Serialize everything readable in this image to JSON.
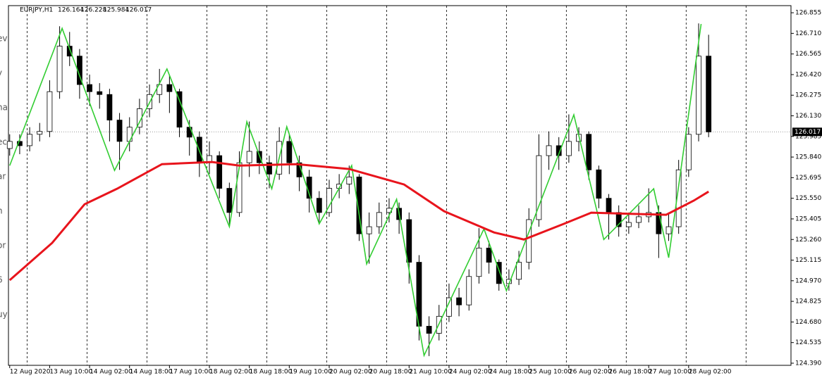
{
  "side_fragments": [
    "ev",
    "y",
    "na",
    "ec",
    "ar",
    "n",
    "or",
    "6",
    "uy"
  ],
  "chart_data": {
    "type": "candlestick",
    "header": {
      "symbol": "EURJPY,H1",
      "open": 126.164,
      "high": 126.228,
      "low": 125.984,
      "close": 126.017
    },
    "last_price": 126.017,
    "xlim": [
      -0.5,
      313
    ],
    "ylim": [
      124.375,
      126.905
    ],
    "yticks": [
      126.855,
      {
        "value": 126.71,
        "label": "126.710"
      },
      126.565,
      {
        "value": 126.42,
        "label": "126.420"
      },
      126.275,
      {
        "value": 126.13,
        "label": "126.130"
      },
      125.985,
      {
        "value": 125.84,
        "label": "125.840"
      },
      125.695,
      {
        "value": 125.55,
        "label": "125.550"
      },
      125.405,
      {
        "value": 125.26,
        "label": "125.260"
      },
      125.115,
      {
        "value": 124.97,
        "label": "124.970"
      },
      124.825,
      {
        "value": 124.68,
        "label": "124.680"
      },
      124.535,
      {
        "value": 124.39,
        "label": "124.390"
      }
    ],
    "xticks": [
      {
        "value": 0,
        "label": "12 Aug 2020"
      },
      {
        "value": 16,
        "label": "13 Aug 10:00"
      },
      {
        "value": 32,
        "label": "14 Aug 02:00"
      },
      {
        "value": 48,
        "label": "14 Aug 18:00"
      },
      {
        "value": 64,
        "label": "17 Aug 10:00"
      },
      {
        "value": 80,
        "label": "18 Aug 02:00"
      },
      {
        "value": 96,
        "label": "18 Aug 18:00"
      },
      {
        "value": 112,
        "label": "19 Aug 10:00"
      },
      {
        "value": 128,
        "label": "20 Aug 02:00"
      },
      {
        "value": 144,
        "label": "20 Aug 18:00"
      },
      {
        "value": 160,
        "label": "21 Aug 10:00"
      },
      {
        "value": 176,
        "label": "24 Aug 02:00"
      },
      {
        "value": 192,
        "label": "24 Aug 18:00"
      },
      {
        "value": 208,
        "label": "25 Aug 10:00"
      },
      {
        "value": 224,
        "label": "26 Aug 02:00"
      },
      {
        "value": 240,
        "label": "26 Aug 18:00"
      },
      {
        "value": 256,
        "label": "27 Aug 10:00"
      },
      {
        "value": 272,
        "label": "28 Aug 02:00"
      }
    ],
    "xgrid": [
      7,
      31,
      55,
      79,
      103,
      127,
      151,
      175,
      199,
      223,
      247,
      271,
      295
    ],
    "candles": {
      "x": [
        0,
        4,
        8,
        12,
        16,
        20,
        24,
        28,
        32,
        36,
        40,
        44,
        48,
        52,
        56,
        60,
        64,
        68,
        72,
        76,
        80,
        84,
        88,
        92,
        96,
        100,
        104,
        108,
        112,
        116,
        120,
        124,
        128,
        132,
        136,
        140,
        144,
        148,
        152,
        156,
        160,
        164,
        168,
        172,
        176,
        180,
        184,
        188,
        192,
        196,
        200,
        204,
        208,
        212,
        216,
        220,
        224,
        228,
        232,
        236,
        240,
        244,
        248,
        252,
        256,
        260,
        264,
        268,
        272,
        276,
        280
      ],
      "open": [
        125.9,
        125.95,
        125.92,
        126.0,
        126.02,
        126.3,
        126.62,
        126.55,
        126.35,
        126.3,
        126.28,
        126.1,
        125.95,
        126.05,
        126.18,
        126.28,
        126.35,
        126.3,
        126.05,
        125.98,
        125.8,
        125.85,
        125.62,
        125.45,
        125.8,
        125.88,
        125.8,
        125.72,
        125.95,
        125.8,
        125.7,
        125.55,
        125.45,
        125.62,
        125.65,
        125.7,
        125.3,
        125.35,
        125.45,
        125.48,
        125.4,
        125.1,
        124.65,
        124.6,
        124.72,
        124.85,
        124.8,
        125.0,
        125.2,
        125.1,
        124.95,
        124.98,
        125.1,
        125.4,
        125.85,
        125.92,
        125.85,
        125.95,
        126.0,
        125.75,
        125.55,
        125.45,
        125.35,
        125.38,
        125.42,
        125.45,
        125.3,
        125.35,
        125.75,
        126.0,
        126.55
      ],
      "high": [
        126.0,
        126.0,
        126.05,
        126.08,
        126.38,
        126.76,
        126.72,
        126.6,
        126.42,
        126.36,
        126.32,
        126.15,
        126.12,
        126.25,
        126.35,
        126.46,
        126.42,
        126.32,
        126.1,
        126.02,
        125.95,
        125.88,
        125.66,
        125.88,
        126.09,
        125.95,
        125.85,
        126.05,
        126.0,
        125.85,
        125.75,
        125.6,
        125.68,
        125.72,
        125.78,
        125.72,
        125.45,
        125.52,
        125.55,
        125.52,
        125.45,
        125.15,
        124.72,
        124.8,
        124.95,
        124.92,
        125.05,
        125.34,
        125.25,
        125.12,
        125.05,
        125.18,
        125.48,
        126.0,
        126.02,
        125.98,
        126.14,
        126.05,
        126.02,
        125.78,
        125.58,
        125.5,
        125.45,
        125.5,
        125.62,
        125.5,
        125.45,
        125.82,
        126.05,
        126.78,
        126.7
      ],
      "low": [
        125.85,
        125.86,
        125.88,
        125.95,
        125.98,
        126.25,
        126.48,
        126.25,
        126.2,
        126.18,
        125.95,
        125.75,
        125.88,
        126.0,
        126.12,
        126.22,
        126.15,
        125.98,
        125.85,
        125.7,
        125.72,
        125.55,
        125.35,
        125.42,
        125.7,
        125.72,
        125.62,
        125.68,
        125.72,
        125.6,
        125.45,
        125.37,
        125.42,
        125.55,
        125.58,
        125.25,
        125.09,
        125.3,
        125.38,
        125.3,
        124.95,
        124.55,
        124.44,
        124.55,
        124.68,
        124.72,
        124.76,
        124.95,
        125.02,
        124.9,
        124.9,
        124.94,
        125.05,
        125.35,
        125.75,
        125.75,
        125.8,
        125.88,
        125.68,
        125.48,
        125.26,
        125.28,
        125.3,
        125.34,
        125.38,
        125.13,
        125.25,
        125.3,
        125.7,
        125.95,
        125.98
      ],
      "close": [
        125.95,
        125.92,
        126.0,
        126.02,
        126.3,
        126.62,
        126.55,
        126.35,
        126.3,
        126.28,
        126.1,
        125.95,
        126.05,
        126.18,
        126.28,
        126.35,
        126.3,
        126.05,
        125.98,
        125.8,
        125.85,
        125.62,
        125.45,
        125.8,
        125.88,
        125.8,
        125.72,
        125.95,
        125.8,
        125.7,
        125.55,
        125.45,
        125.62,
        125.65,
        125.7,
        125.3,
        125.35,
        125.45,
        125.48,
        125.4,
        125.1,
        124.65,
        124.6,
        124.72,
        124.85,
        124.8,
        125.0,
        125.2,
        125.1,
        124.95,
        124.98,
        125.1,
        125.4,
        125.85,
        125.92,
        125.85,
        125.95,
        126.0,
        125.75,
        125.55,
        125.45,
        125.35,
        125.38,
        125.42,
        125.45,
        125.3,
        125.35,
        125.75,
        126.0,
        126.55,
        126.017
      ]
    },
    "series": [
      {
        "kind": "zigzag",
        "color": "#32cd32",
        "x": [
          0,
          21,
          42,
          63,
          88,
          95,
          105,
          111,
          124,
          137,
          143,
          155,
          166,
          190,
          199,
          226,
          238,
          258,
          264,
          277
        ],
        "values": [
          125.78,
          126.745,
          125.746,
          126.46,
          125.35,
          126.088,
          125.617,
          126.053,
          125.37,
          125.78,
          125.088,
          125.543,
          124.444,
          125.335,
          124.9,
          126.137,
          125.26,
          125.617,
          125.132,
          126.776
        ]
      },
      {
        "kind": "moving-average",
        "color": "#e8141c",
        "x": [
          0,
          17,
          30,
          43,
          61,
          81,
          92,
          115,
          136,
          158,
          174,
          194,
          206,
          222,
          233,
          250,
          263,
          274,
          280
        ],
        "values": [
          124.974,
          125.236,
          125.508,
          125.617,
          125.79,
          125.805,
          125.78,
          125.79,
          125.756,
          125.647,
          125.459,
          125.31,
          125.26,
          125.37,
          125.449,
          125.44,
          125.434,
          125.533,
          125.597
        ]
      }
    ]
  }
}
